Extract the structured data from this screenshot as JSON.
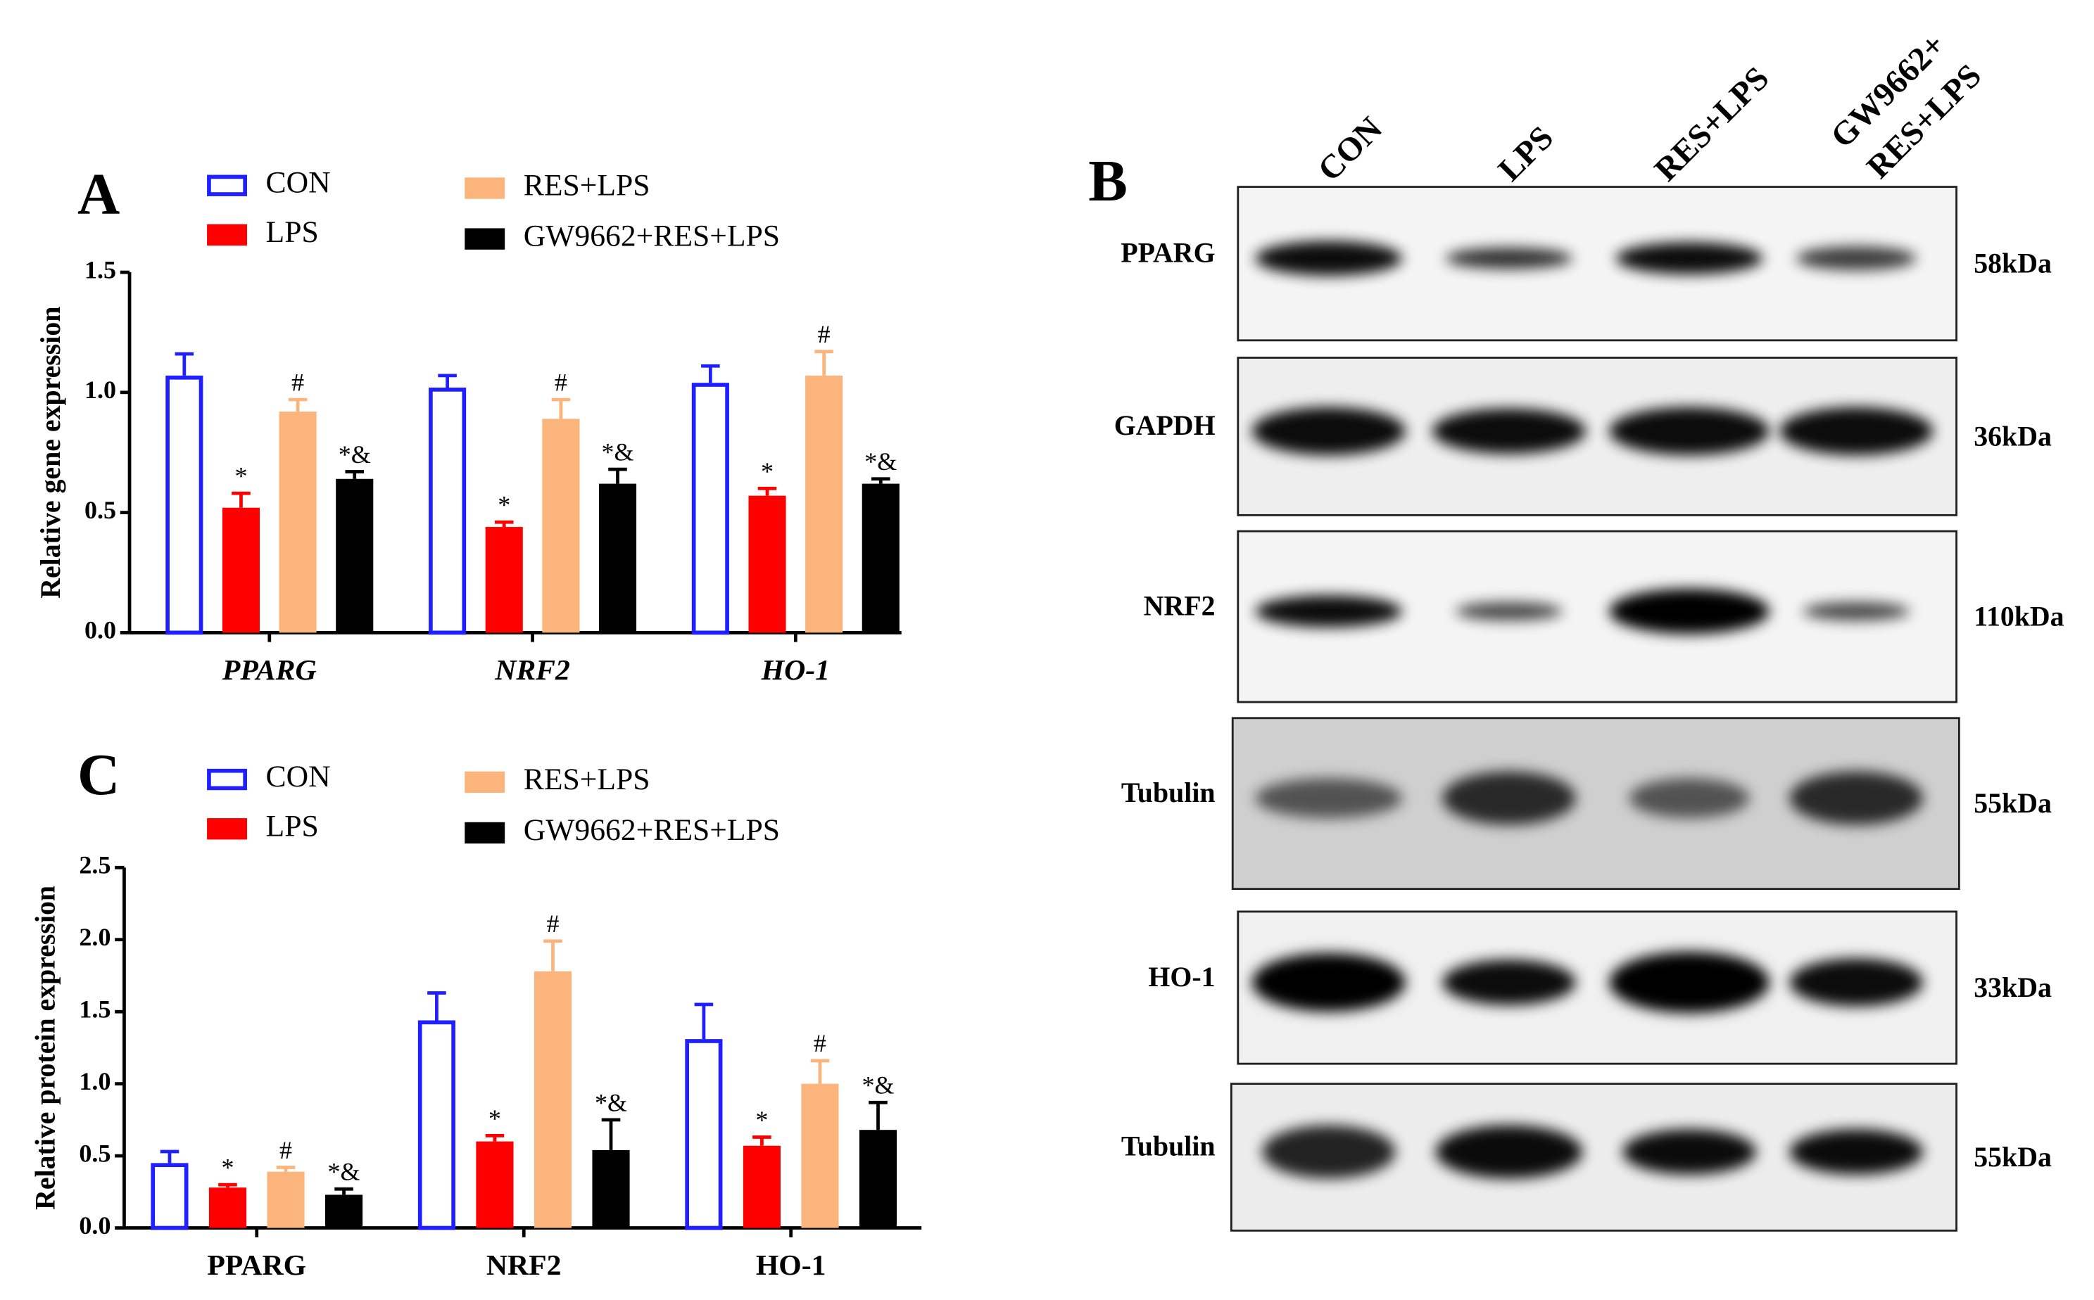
{
  "panels": [
    "A",
    "B",
    "C"
  ],
  "chart_data": [
    {
      "type": "bar",
      "ylabel": "Relative gene expression",
      "categories": [
        "PPARG",
        "NRF2",
        "HO-1"
      ],
      "ylim": [
        0,
        1.5
      ],
      "yticks": [
        {
          "value": 0,
          "label": "0.0"
        },
        0.5,
        {
          "value": 1,
          "label": "1.0"
        },
        1.5
      ],
      "series": [
        {
          "name": "CON",
          "color": "#1f1fff",
          "filled": false,
          "values": [
            1.07,
            1.02,
            1.04
          ],
          "errors": [
            0.09,
            0.05,
            0.07
          ],
          "annotations": [
            null,
            null,
            null
          ]
        },
        {
          "name": "LPS",
          "color": "#ff0000",
          "filled": true,
          "values": [
            0.52,
            0.44,
            0.57
          ],
          "errors": [
            0.06,
            0.02,
            0.03
          ],
          "annotations": [
            "*",
            "*",
            "*"
          ]
        },
        {
          "name": "RES+LPS",
          "color": "#fbb57c",
          "filled": true,
          "values": [
            0.92,
            0.89,
            1.07
          ],
          "errors": [
            0.05,
            0.08,
            0.1
          ],
          "annotations": [
            "#",
            "#",
            "#"
          ]
        },
        {
          "name": "GW9662+RES+LPS",
          "color": "#000000",
          "filled": true,
          "values": [
            0.64,
            0.62,
            0.62
          ],
          "errors": [
            0.03,
            0.06,
            0.02
          ],
          "annotations": [
            "*&",
            "*&",
            "*&"
          ]
        }
      ]
    },
    {
      "type": "bar",
      "ylabel": "Relative protein expression",
      "categories": [
        "PPARG",
        "NRF2",
        "HO-1"
      ],
      "ylim": [
        0,
        2.5
      ],
      "yticks": [
        {
          "value": 0,
          "label": "0.0"
        },
        0.5,
        {
          "value": 1,
          "label": "1.0"
        },
        1.5,
        {
          "value": 2,
          "label": "2.0"
        },
        2.5
      ],
      "series": [
        {
          "name": "CON",
          "color": "#1f1fff",
          "filled": false,
          "values": [
            0.45,
            1.44,
            1.31
          ],
          "errors": [
            0.08,
            0.19,
            0.24
          ],
          "annotations": [
            null,
            null,
            null
          ]
        },
        {
          "name": "LPS",
          "color": "#ff0000",
          "filled": true,
          "values": [
            0.28,
            0.6,
            0.57
          ],
          "errors": [
            0.02,
            0.04,
            0.06
          ],
          "annotations": [
            "*",
            "*",
            "*"
          ]
        },
        {
          "name": "RES+LPS",
          "color": "#fbb57c",
          "filled": true,
          "values": [
            0.39,
            1.78,
            1.0
          ],
          "errors": [
            0.03,
            0.21,
            0.16
          ],
          "annotations": [
            "#",
            "#",
            "#"
          ]
        },
        {
          "name": "GW9662+RES+LPS",
          "color": "#000000",
          "filled": true,
          "values": [
            0.23,
            0.54,
            0.68
          ],
          "errors": [
            0.04,
            0.21,
            0.19
          ],
          "annotations": [
            "*&",
            "*&",
            "*&"
          ]
        }
      ]
    }
  ],
  "blot": {
    "lanes": [
      "CON",
      "LPS",
      "RES+LPS",
      [
        "GW9662+",
        "RES+LPS"
      ]
    ],
    "rows": [
      {
        "protein": "PPARG",
        "size": "58kDa"
      },
      {
        "protein": "GAPDH",
        "size": "36kDa"
      },
      {
        "protein": "NRF2",
        "size": "110kDa"
      },
      {
        "protein": "Tubulin",
        "size": "55kDa"
      },
      {
        "protein": "HO-1",
        "size": "33kDa"
      },
      {
        "protein": "Tubulin",
        "size": "55kDa"
      }
    ]
  }
}
